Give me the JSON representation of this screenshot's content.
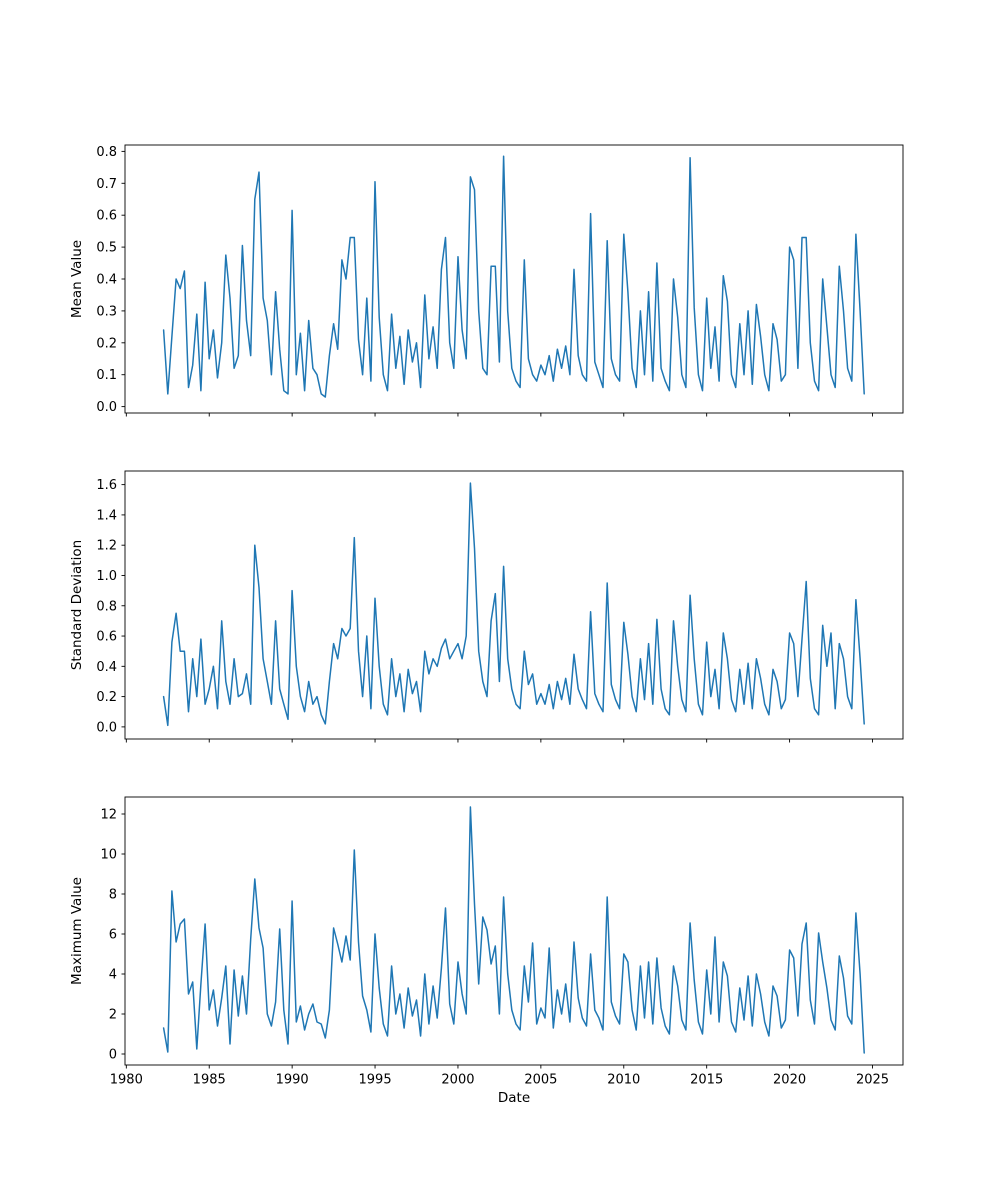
{
  "figure": {
    "background_color": "#ffffff",
    "line_color": "#1f77b4",
    "frame_color": "#000000",
    "text_color": "#000000"
  },
  "chart_data": {
    "type": "line",
    "title": "",
    "xlabel": "Date",
    "grid": false,
    "legend": null,
    "xlim": [
      1979.92,
      2026.84
    ],
    "xticks": [
      1980,
      1985,
      1990,
      1995,
      2000,
      2005,
      2010,
      2015,
      2020,
      2025
    ],
    "xtick_labels": [
      "1980",
      "1985",
      "1990",
      "1995",
      "2000",
      "2005",
      "2010",
      "2015",
      "2020",
      "2025"
    ],
    "x": [
      1982.25,
      1982.5,
      1982.75,
      1983,
      1983.25,
      1983.5,
      1983.75,
      1984,
      1984.25,
      1984.5,
      1984.75,
      1985,
      1985.25,
      1985.5,
      1985.75,
      1986,
      1986.25,
      1986.5,
      1986.75,
      1987,
      1987.25,
      1987.5,
      1987.75,
      1988,
      1988.25,
      1988.5,
      1988.75,
      1989,
      1989.25,
      1989.5,
      1989.75,
      1990,
      1990.25,
      1990.5,
      1990.75,
      1991,
      1991.25,
      1991.5,
      1991.75,
      1992,
      1992.25,
      1992.5,
      1992.75,
      1993,
      1993.25,
      1993.5,
      1993.75,
      1994,
      1994.25,
      1994.5,
      1994.75,
      1995,
      1995.25,
      1995.5,
      1995.75,
      1996,
      1996.25,
      1996.5,
      1996.75,
      1997,
      1997.25,
      1997.5,
      1997.75,
      1998,
      1998.25,
      1998.5,
      1998.75,
      1999,
      1999.25,
      1999.5,
      1999.75,
      2000,
      2000.25,
      2000.5,
      2000.75,
      2001,
      2001.25,
      2001.5,
      2001.75,
      2002,
      2002.25,
      2002.5,
      2002.75,
      2003,
      2003.25,
      2003.5,
      2003.75,
      2004,
      2004.25,
      2004.5,
      2004.75,
      2005,
      2005.25,
      2005.5,
      2005.75,
      2006,
      2006.25,
      2006.5,
      2006.75,
      2007,
      2007.25,
      2007.5,
      2007.75,
      2008,
      2008.25,
      2008.5,
      2008.75,
      2009,
      2009.25,
      2009.5,
      2009.75,
      2010,
      2010.25,
      2010.5,
      2010.75,
      2011,
      2011.25,
      2011.5,
      2011.75,
      2012,
      2012.25,
      2012.5,
      2012.75,
      2013,
      2013.25,
      2013.5,
      2013.75,
      2014,
      2014.25,
      2014.5,
      2014.75,
      2015,
      2015.25,
      2015.5,
      2015.75,
      2016,
      2016.25,
      2016.5,
      2016.75,
      2017,
      2017.25,
      2017.5,
      2017.75,
      2018,
      2018.25,
      2018.5,
      2018.75,
      2019,
      2019.25,
      2019.5,
      2019.75,
      2020,
      2020.25,
      2020.5,
      2020.75,
      2021,
      2021.25,
      2021.5,
      2021.75,
      2022,
      2022.25,
      2022.5,
      2022.75,
      2023,
      2023.25,
      2023.5,
      2023.75,
      2024,
      2024.25,
      2024.5
    ],
    "subplots": [
      {
        "ylabel": "Mean Value",
        "ylim": [
          -0.02,
          0.82
        ],
        "yticks": [
          0.0,
          0.1,
          0.2,
          0.3,
          0.4,
          0.5,
          0.6,
          0.7,
          0.8
        ],
        "ytick_labels": [
          "0.0",
          "0.1",
          "0.2",
          "0.3",
          "0.4",
          "0.5",
          "0.6",
          "0.7",
          "0.8"
        ],
        "values": [
          0.24,
          0.04,
          0.22,
          0.4,
          0.37,
          0.425,
          0.06,
          0.13,
          0.29,
          0.05,
          0.39,
          0.15,
          0.24,
          0.09,
          0.2,
          0.475,
          0.34,
          0.12,
          0.16,
          0.505,
          0.27,
          0.16,
          0.65,
          0.735,
          0.34,
          0.27,
          0.1,
          0.36,
          0.18,
          0.05,
          0.04,
          0.615,
          0.1,
          0.23,
          0.05,
          0.27,
          0.12,
          0.1,
          0.04,
          0.03,
          0.16,
          0.26,
          0.18,
          0.46,
          0.4,
          0.53,
          0.53,
          0.21,
          0.1,
          0.34,
          0.08,
          0.705,
          0.28,
          0.1,
          0.05,
          0.29,
          0.12,
          0.22,
          0.07,
          0.24,
          0.14,
          0.2,
          0.06,
          0.35,
          0.15,
          0.25,
          0.12,
          0.43,
          0.53,
          0.2,
          0.12,
          0.47,
          0.24,
          0.15,
          0.72,
          0.68,
          0.3,
          0.12,
          0.1,
          0.44,
          0.44,
          0.14,
          0.785,
          0.3,
          0.12,
          0.08,
          0.06,
          0.46,
          0.15,
          0.1,
          0.08,
          0.13,
          0.1,
          0.16,
          0.08,
          0.18,
          0.12,
          0.19,
          0.1,
          0.43,
          0.16,
          0.1,
          0.08,
          0.605,
          0.14,
          0.1,
          0.06,
          0.52,
          0.15,
          0.1,
          0.08,
          0.54,
          0.36,
          0.12,
          0.06,
          0.3,
          0.1,
          0.36,
          0.08,
          0.45,
          0.12,
          0.08,
          0.05,
          0.4,
          0.28,
          0.1,
          0.06,
          0.78,
          0.31,
          0.1,
          0.05,
          0.34,
          0.12,
          0.25,
          0.08,
          0.41,
          0.33,
          0.1,
          0.06,
          0.26,
          0.1,
          0.3,
          0.07,
          0.32,
          0.22,
          0.1,
          0.05,
          0.26,
          0.21,
          0.08,
          0.1,
          0.5,
          0.46,
          0.12,
          0.53,
          0.53,
          0.2,
          0.08,
          0.05,
          0.4,
          0.25,
          0.1,
          0.06,
          0.44,
          0.3,
          0.12,
          0.08,
          0.54,
          0.3,
          0.04
        ]
      },
      {
        "ylabel": "Standard Deviation",
        "ylim": [
          -0.08,
          1.69
        ],
        "yticks": [
          0.0,
          0.2,
          0.4,
          0.6,
          0.8,
          1.0,
          1.2,
          1.4,
          1.6
        ],
        "ytick_labels": [
          "0.0",
          "0.2",
          "0.4",
          "0.6",
          "0.8",
          "1.0",
          "1.2",
          "1.4",
          "1.6"
        ],
        "values": [
          0.2,
          0.01,
          0.56,
          0.75,
          0.5,
          0.5,
          0.1,
          0.45,
          0.2,
          0.58,
          0.15,
          0.25,
          0.4,
          0.12,
          0.7,
          0.3,
          0.15,
          0.45,
          0.2,
          0.22,
          0.35,
          0.15,
          1.2,
          0.92,
          0.45,
          0.3,
          0.15,
          0.7,
          0.25,
          0.15,
          0.05,
          0.9,
          0.4,
          0.2,
          0.1,
          0.3,
          0.15,
          0.2,
          0.08,
          0.02,
          0.3,
          0.55,
          0.45,
          0.65,
          0.6,
          0.65,
          1.25,
          0.5,
          0.2,
          0.6,
          0.12,
          0.85,
          0.4,
          0.15,
          0.08,
          0.45,
          0.2,
          0.35,
          0.1,
          0.38,
          0.22,
          0.3,
          0.1,
          0.5,
          0.35,
          0.45,
          0.4,
          0.52,
          0.58,
          0.45,
          0.5,
          0.55,
          0.45,
          0.6,
          1.61,
          1.18,
          0.5,
          0.3,
          0.2,
          0.7,
          0.88,
          0.3,
          1.06,
          0.45,
          0.25,
          0.15,
          0.12,
          0.5,
          0.28,
          0.35,
          0.15,
          0.22,
          0.15,
          0.28,
          0.12,
          0.3,
          0.18,
          0.32,
          0.15,
          0.48,
          0.25,
          0.18,
          0.12,
          0.76,
          0.22,
          0.15,
          0.1,
          0.95,
          0.28,
          0.18,
          0.12,
          0.69,
          0.48,
          0.2,
          0.1,
          0.45,
          0.18,
          0.55,
          0.15,
          0.71,
          0.25,
          0.12,
          0.08,
          0.7,
          0.4,
          0.18,
          0.1,
          0.87,
          0.45,
          0.15,
          0.08,
          0.56,
          0.2,
          0.38,
          0.12,
          0.62,
          0.45,
          0.18,
          0.1,
          0.38,
          0.15,
          0.42,
          0.12,
          0.45,
          0.32,
          0.15,
          0.08,
          0.38,
          0.3,
          0.12,
          0.18,
          0.62,
          0.55,
          0.2,
          0.58,
          0.96,
          0.32,
          0.12,
          0.08,
          0.67,
          0.4,
          0.62,
          0.12,
          0.55,
          0.45,
          0.2,
          0.12,
          0.84,
          0.45,
          0.02
        ]
      },
      {
        "ylabel": "Maximum Value",
        "ylim": [
          -0.55,
          12.85
        ],
        "yticks": [
          0,
          2,
          4,
          6,
          8,
          10,
          12
        ],
        "ytick_labels": [
          "0",
          "2",
          "4",
          "6",
          "8",
          "10",
          "12"
        ],
        "values": [
          1.3,
          0.1,
          8.15,
          5.6,
          6.5,
          6.75,
          3.0,
          3.6,
          0.25,
          3.5,
          6.5,
          2.2,
          3.2,
          1.4,
          2.8,
          4.4,
          0.5,
          4.2,
          1.9,
          3.9,
          2.0,
          5.75,
          8.75,
          6.3,
          5.3,
          2.0,
          1.4,
          2.6,
          6.25,
          2.2,
          0.5,
          7.65,
          1.6,
          2.4,
          1.2,
          2.0,
          2.5,
          1.6,
          1.5,
          0.8,
          2.2,
          6.3,
          5.5,
          4.6,
          5.9,
          4.7,
          10.2,
          5.6,
          2.9,
          2.2,
          1.1,
          6.0,
          3.3,
          1.5,
          0.9,
          4.4,
          2.0,
          3.0,
          1.3,
          3.3,
          1.9,
          2.7,
          0.9,
          4.0,
          1.5,
          3.4,
          1.8,
          4.3,
          7.3,
          2.5,
          1.5,
          4.6,
          3.0,
          2.0,
          12.35,
          7.5,
          3.5,
          6.85,
          6.2,
          4.5,
          5.4,
          2.0,
          7.85,
          4.0,
          2.2,
          1.5,
          1.2,
          4.4,
          2.6,
          5.55,
          1.5,
          2.3,
          1.8,
          5.3,
          1.3,
          3.2,
          2.0,
          3.5,
          1.6,
          5.6,
          2.8,
          1.8,
          1.4,
          5.0,
          2.2,
          1.8,
          1.2,
          7.85,
          2.6,
          1.9,
          1.5,
          5.0,
          4.6,
          2.2,
          1.2,
          4.4,
          1.8,
          4.6,
          1.5,
          4.8,
          2.3,
          1.4,
          1.0,
          4.4,
          3.4,
          1.7,
          1.2,
          6.55,
          3.7,
          1.6,
          1.0,
          4.2,
          2.0,
          5.85,
          1.6,
          4.6,
          3.9,
          1.6,
          1.1,
          3.3,
          1.7,
          3.9,
          1.4,
          4.0,
          3.0,
          1.6,
          0.9,
          3.4,
          2.9,
          1.3,
          1.7,
          5.2,
          4.8,
          1.9,
          5.5,
          6.55,
          2.7,
          1.5,
          6.05,
          4.6,
          3.3,
          1.7,
          1.2,
          4.9,
          3.8,
          1.9,
          1.5,
          7.05,
          4.0,
          0.05
        ]
      }
    ]
  }
}
